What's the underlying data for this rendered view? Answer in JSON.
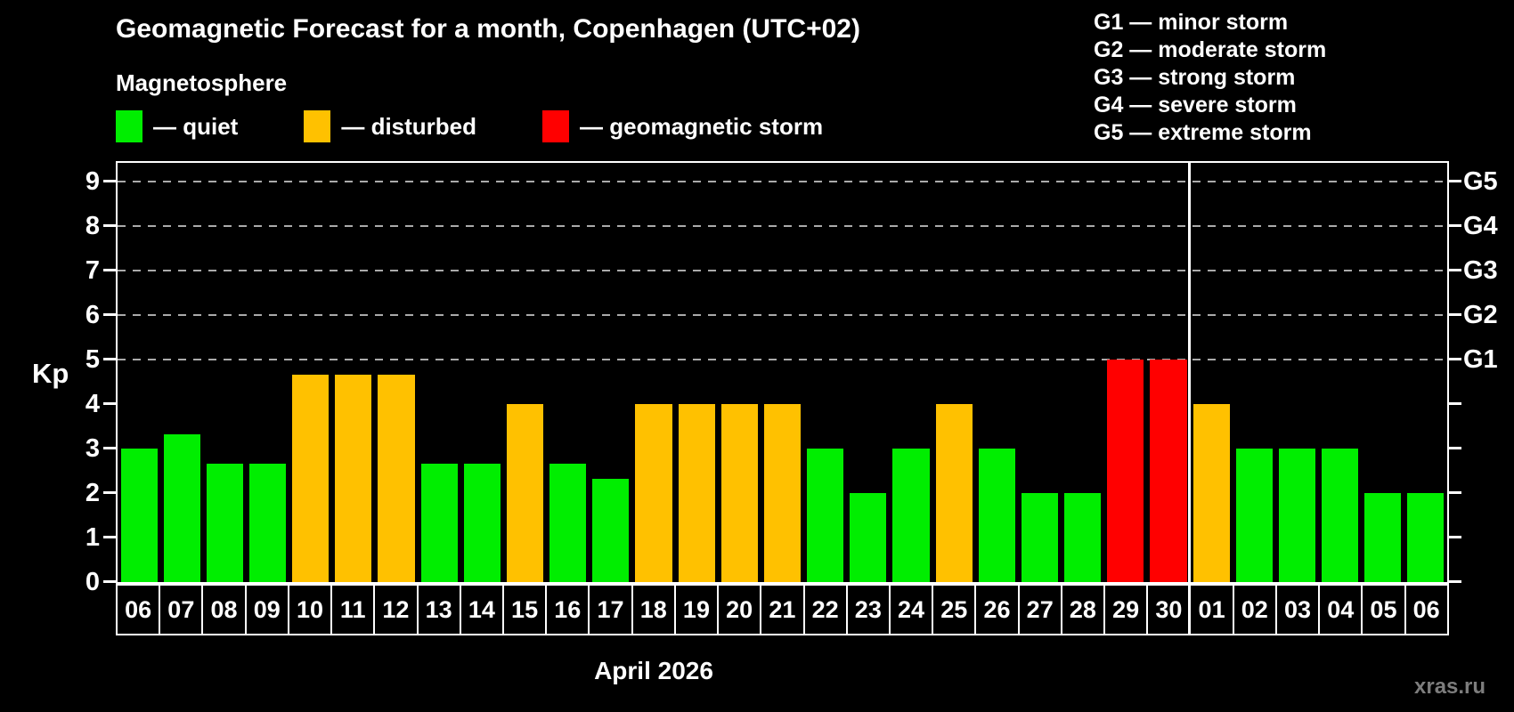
{
  "title": "Geomagnetic Forecast for a month, Copenhagen (UTC+02)",
  "subtitle": "Magnetosphere",
  "watermark": "xras.ru",
  "colors": {
    "quiet": "#00ee00",
    "disturbed": "#ffc100",
    "storm": "#ff0000",
    "axis": "#ffffff",
    "grid": "#aaaaaa",
    "background": "#000000",
    "watermark_gray": "#7d7d7d"
  },
  "legend": {
    "items": [
      {
        "state": "quiet",
        "label": "— quiet"
      },
      {
        "state": "disturbed",
        "label": "— disturbed"
      },
      {
        "state": "storm",
        "label": "— geomagnetic storm"
      }
    ]
  },
  "storm_scale_legend": [
    "G1 — minor storm",
    "G2 — moderate storm",
    "G3 — strong storm",
    "G4 — severe storm",
    "G5 — extreme storm"
  ],
  "y_axis": {
    "label": "Kp",
    "ticks": [
      0,
      1,
      2,
      3,
      4,
      5,
      6,
      7,
      8,
      9
    ]
  },
  "right_axis": {
    "labels": [
      {
        "label": "G1",
        "kp": 5
      },
      {
        "label": "G2",
        "kp": 6
      },
      {
        "label": "G3",
        "kp": 7
      },
      {
        "label": "G4",
        "kp": 8
      },
      {
        "label": "G5",
        "kp": 9
      }
    ]
  },
  "x_axis": {
    "month_label": "April 2026",
    "days": [
      "06",
      "07",
      "08",
      "09",
      "10",
      "11",
      "12",
      "13",
      "14",
      "15",
      "16",
      "17",
      "18",
      "19",
      "20",
      "21",
      "22",
      "23",
      "24",
      "25",
      "26",
      "27",
      "28",
      "29",
      "30",
      "01",
      "02",
      "03",
      "04",
      "05",
      "06"
    ]
  },
  "chart_data": {
    "type": "bar",
    "title": "Geomagnetic Forecast for a month, Copenhagen (UTC+02)",
    "xlabel": "April 2026",
    "ylabel": "Kp",
    "ylim": [
      0,
      9.4
    ],
    "grid": "horizontal dashed lines at Kp 5-9 only",
    "legend_position": "top-left",
    "categories": [
      "06",
      "07",
      "08",
      "09",
      "10",
      "11",
      "12",
      "13",
      "14",
      "15",
      "16",
      "17",
      "18",
      "19",
      "20",
      "21",
      "22",
      "23",
      "24",
      "25",
      "26",
      "27",
      "28",
      "29",
      "30",
      "01",
      "02",
      "03",
      "04",
      "05",
      "06"
    ],
    "values": [
      3,
      3.33,
      2.67,
      2.67,
      4.67,
      4.67,
      4.67,
      2.67,
      2.67,
      4,
      2.67,
      2.33,
      4,
      4,
      4,
      4,
      3,
      2,
      3,
      4,
      3,
      2,
      2,
      5,
      5,
      4,
      3,
      3,
      3,
      2,
      2
    ],
    "states": [
      "quiet",
      "quiet",
      "quiet",
      "quiet",
      "disturbed",
      "disturbed",
      "disturbed",
      "quiet",
      "quiet",
      "disturbed",
      "quiet",
      "quiet",
      "disturbed",
      "disturbed",
      "disturbed",
      "disturbed",
      "quiet",
      "quiet",
      "quiet",
      "disturbed",
      "quiet",
      "quiet",
      "quiet",
      "storm",
      "storm",
      "disturbed",
      "quiet",
      "quiet",
      "quiet",
      "quiet",
      "quiet"
    ],
    "gridlines_at_kp": [
      5,
      6,
      7,
      8,
      9
    ],
    "month_boundary_after_index": 24
  }
}
